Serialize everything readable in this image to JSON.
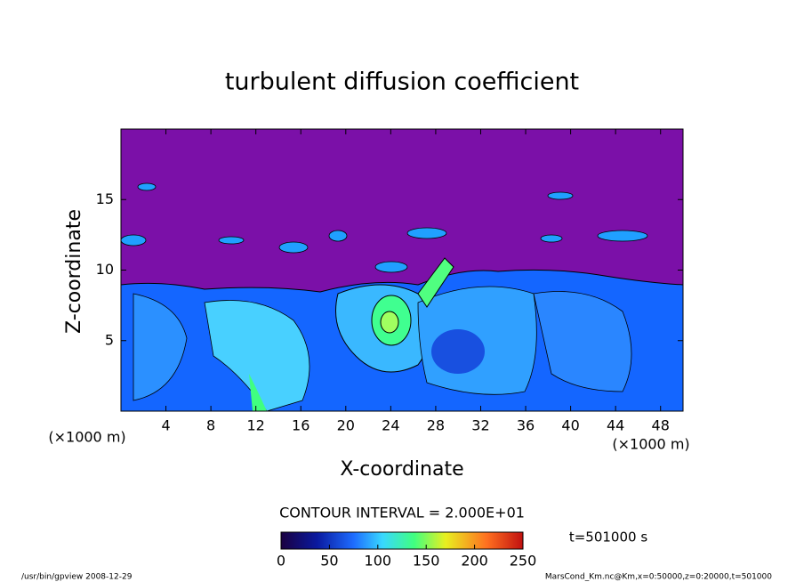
{
  "chart_data": {
    "type": "contour",
    "title": "turbulent diffusion coefficient",
    "x_label": "X-coordinate",
    "y_label": "Z-coordinate",
    "x_unit": "(×1000 m)",
    "y_unit": "(×1000 m)",
    "xlim": [
      0,
      50
    ],
    "ylim": [
      0,
      20
    ],
    "xticks": [
      4,
      8,
      12,
      16,
      20,
      24,
      28,
      32,
      36,
      40,
      44,
      48
    ],
    "yticks": [
      5,
      10,
      15
    ],
    "contour_interval": "CONTOUR INTERVAL = 2.000E+01",
    "time": "t=501000 s",
    "colorbar": {
      "lim": [
        0,
        250
      ],
      "ticks": [
        0,
        50,
        100,
        150,
        200,
        250
      ]
    },
    "footer_left": "/usr/bin/gpview  2008-12-29",
    "footer_right": "MarsCond_Km.nc@Km,x=0:50000,z=0:20000,t=501000"
  }
}
